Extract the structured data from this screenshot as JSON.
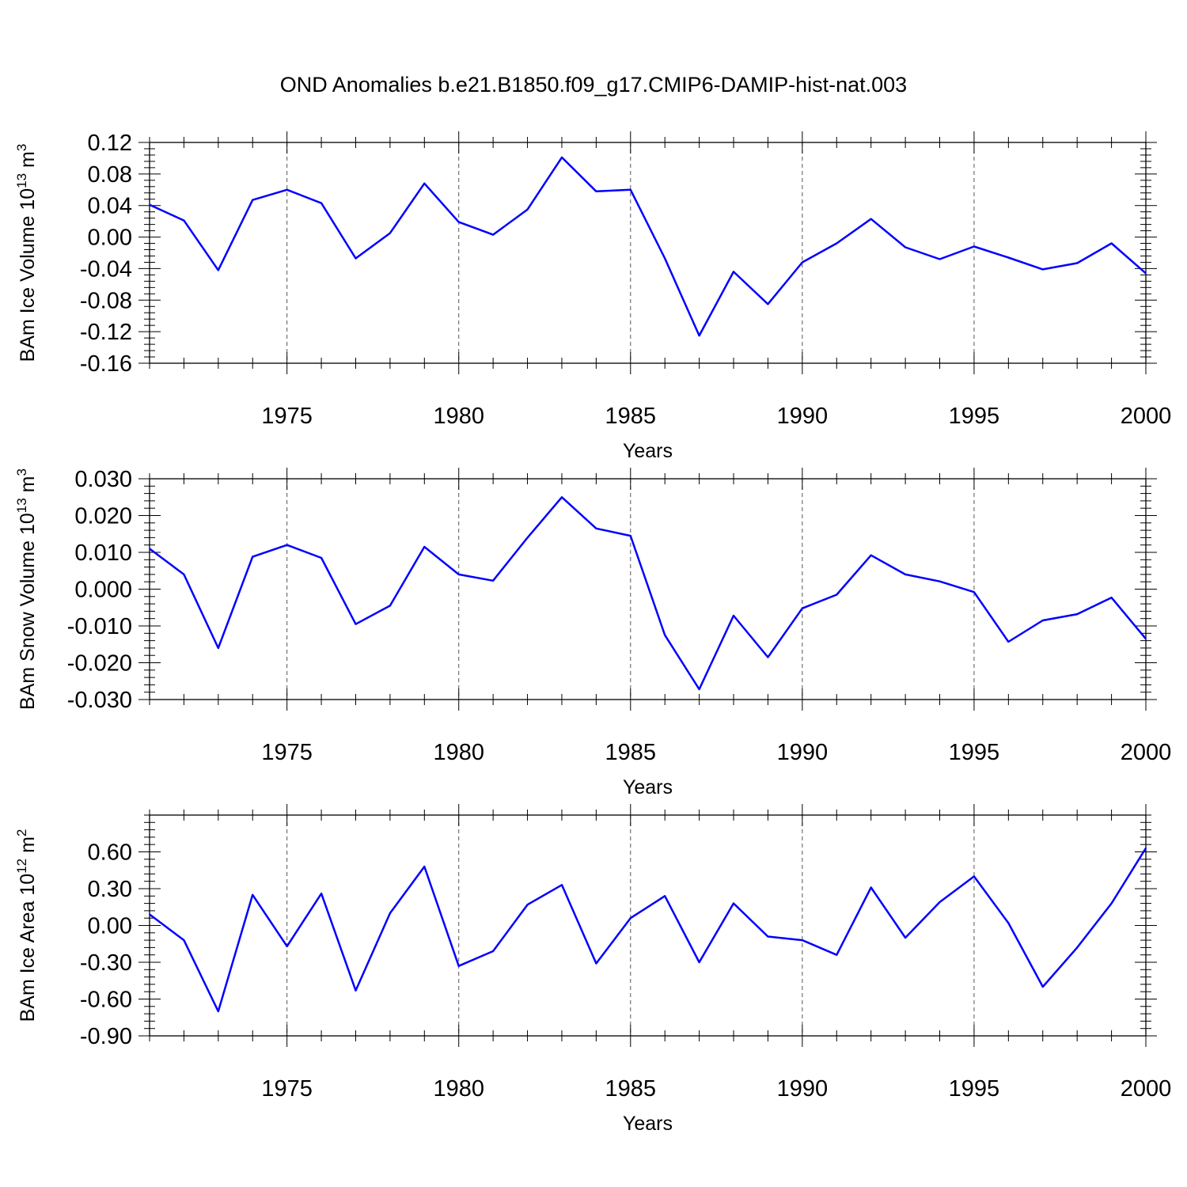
{
  "title": "OND Anomalies b.e21.B1850.f09_g17.CMIP6-DAMIP-hist-nat.003",
  "colors": {
    "series": "#0000ff",
    "axis": "#000000",
    "grid": "#555555"
  },
  "chart_data": [
    {
      "type": "line",
      "ylabel": {
        "main": "BAm Ice Volume 10",
        "exp": "13",
        "unit": " m",
        "unit_exp": "3"
      },
      "xlabel": "Years",
      "xlim": [
        1971,
        2000
      ],
      "ylim": [
        -0.16,
        0.12
      ],
      "yticks": [
        -0.16,
        -0.12,
        -0.08,
        -0.04,
        0.0,
        0.04,
        0.08,
        0.12
      ],
      "ytick_labels": [
        "-0.16",
        "-0.12",
        "-0.08",
        "-0.04",
        "0.00",
        "0.04",
        "0.08",
        "0.12"
      ],
      "xticks": [
        1975,
        1980,
        1985,
        1990,
        1995,
        2000
      ],
      "xtick_labels": [
        "1975",
        "1980",
        "1985",
        "1990",
        "1995",
        "2000"
      ],
      "grid": "vertical dashed at labeled x ticks",
      "x": [
        1971,
        1972,
        1973,
        1974,
        1975,
        1976,
        1977,
        1978,
        1979,
        1980,
        1981,
        1982,
        1983,
        1984,
        1985,
        1986,
        1987,
        1988,
        1989,
        1990,
        1991,
        1992,
        1993,
        1994,
        1995,
        1996,
        1997,
        1998,
        1999,
        2000
      ],
      "series": [
        {
          "values": [
            0.041,
            0.021,
            -0.042,
            0.047,
            0.06,
            0.043,
            -0.027,
            0.005,
            0.068,
            0.019,
            0.003,
            0.035,
            0.101,
            0.058,
            0.06,
            -0.027,
            -0.125,
            -0.044,
            -0.085,
            -0.032,
            -0.008,
            0.023,
            -0.013,
            -0.028,
            -0.012,
            -0.026,
            -0.041,
            -0.033,
            -0.008,
            -0.046
          ]
        }
      ]
    },
    {
      "type": "line",
      "ylabel": {
        "main": "BAm Snow Volume 10",
        "exp": "13",
        "unit": " m",
        "unit_exp": "3"
      },
      "xlabel": "Years",
      "xlim": [
        1971,
        2000
      ],
      "ylim": [
        -0.03,
        0.03
      ],
      "yticks": [
        -0.03,
        -0.02,
        -0.01,
        0.0,
        0.01,
        0.02,
        0.03
      ],
      "ytick_labels": [
        "-0.030",
        "-0.020",
        "-0.010",
        "0.000",
        "0.010",
        "0.020",
        "0.030"
      ],
      "xticks": [
        1975,
        1980,
        1985,
        1990,
        1995,
        2000
      ],
      "xtick_labels": [
        "1975",
        "1980",
        "1985",
        "1990",
        "1995",
        "2000"
      ],
      "grid": "vertical dashed at labeled x ticks",
      "x": [
        1971,
        1972,
        1973,
        1974,
        1975,
        1976,
        1977,
        1978,
        1979,
        1980,
        1981,
        1982,
        1983,
        1984,
        1985,
        1986,
        1987,
        1988,
        1989,
        1990,
        1991,
        1992,
        1993,
        1994,
        1995,
        1996,
        1997,
        1998,
        1999,
        2000
      ],
      "series": [
        {
          "values": [
            0.011,
            0.004,
            -0.016,
            0.0088,
            0.012,
            0.0085,
            -0.0095,
            -0.0045,
            0.0115,
            0.004,
            0.0023,
            0.014,
            0.025,
            0.0165,
            0.0145,
            -0.0125,
            -0.0272,
            -0.0072,
            -0.0185,
            -0.0052,
            -0.0015,
            0.0092,
            0.004,
            0.0021,
            -0.0008,
            -0.0143,
            -0.0085,
            -0.0068,
            -0.0023,
            -0.0135
          ]
        }
      ]
    },
    {
      "type": "line",
      "ylabel": {
        "main": "BAm Ice Area 10",
        "exp": "12",
        "unit": " m",
        "unit_exp": "2"
      },
      "xlabel": "Years",
      "xlim": [
        1971,
        2000
      ],
      "ylim": [
        -0.9,
        0.9
      ],
      "yticks": [
        -0.9,
        -0.6,
        -0.3,
        0.0,
        0.3,
        0.6
      ],
      "ytick_labels": [
        "-0.90",
        "-0.60",
        "-0.30",
        "0.00",
        "0.30",
        "0.60"
      ],
      "xticks": [
        1975,
        1980,
        1985,
        1990,
        1995,
        2000
      ],
      "xtick_labels": [
        "1975",
        "1980",
        "1985",
        "1990",
        "1995",
        "2000"
      ],
      "grid": "vertical dashed at labeled x ticks",
      "x": [
        1971,
        1972,
        1973,
        1974,
        1975,
        1976,
        1977,
        1978,
        1979,
        1980,
        1981,
        1982,
        1983,
        1984,
        1985,
        1986,
        1987,
        1988,
        1989,
        1990,
        1991,
        1992,
        1993,
        1994,
        1995,
        1996,
        1997,
        1998,
        1999,
        2000
      ],
      "series": [
        {
          "values": [
            0.09,
            -0.12,
            -0.7,
            0.25,
            -0.17,
            0.26,
            -0.53,
            0.1,
            0.48,
            -0.33,
            -0.21,
            0.17,
            0.33,
            -0.31,
            0.06,
            0.24,
            -0.3,
            0.18,
            -0.09,
            -0.12,
            -0.24,
            0.31,
            -0.1,
            0.19,
            0.4,
            0.02,
            -0.5,
            -0.18,
            0.18,
            0.63
          ]
        }
      ]
    }
  ]
}
